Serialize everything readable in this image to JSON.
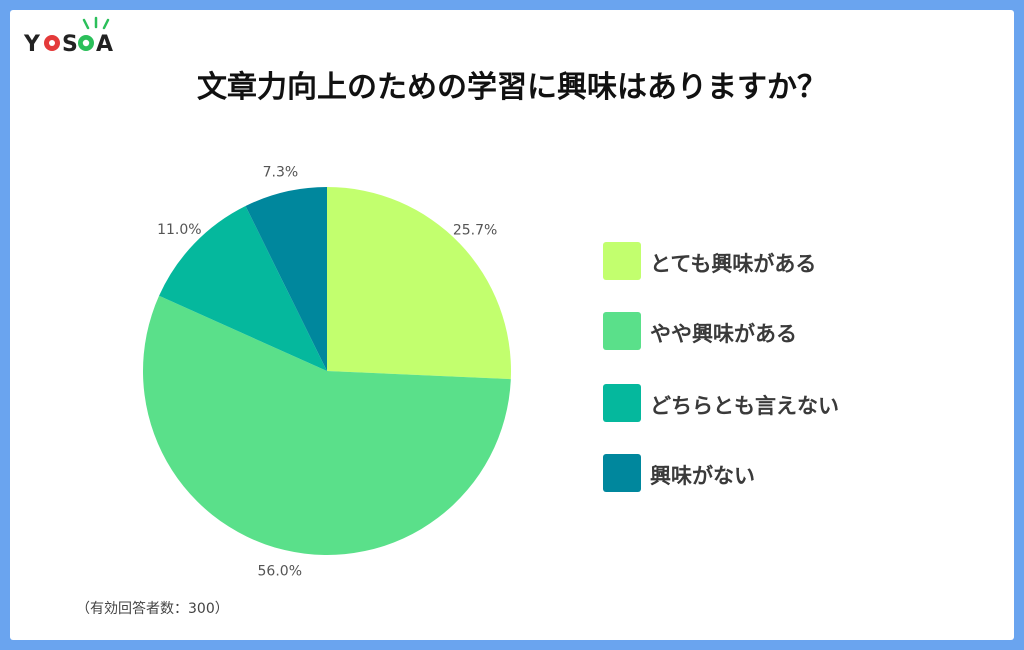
{
  "brand": {
    "name": "YOSCA"
  },
  "title": "文章力向上のための学習に興味はありますか？",
  "footnote": "（有効回答者数：300）",
  "chart_data": {
    "type": "pie",
    "title": "文章力向上のための学習に興味はありますか？",
    "categories": [
      "とても興味がある",
      "やや興味がある",
      "どちらとも言えない",
      "興味がない"
    ],
    "values": [
      25.7,
      56.0,
      11.0,
      7.3
    ],
    "labels": [
      "25.7%",
      "56.0%",
      "11.0%",
      "7.3%"
    ],
    "colors": [
      "#c2ff6e",
      "#5ae08a",
      "#05b89d",
      "#00879d"
    ],
    "start_angle_deg": 0,
    "direction": "clockwise",
    "legend_placement": "right"
  }
}
